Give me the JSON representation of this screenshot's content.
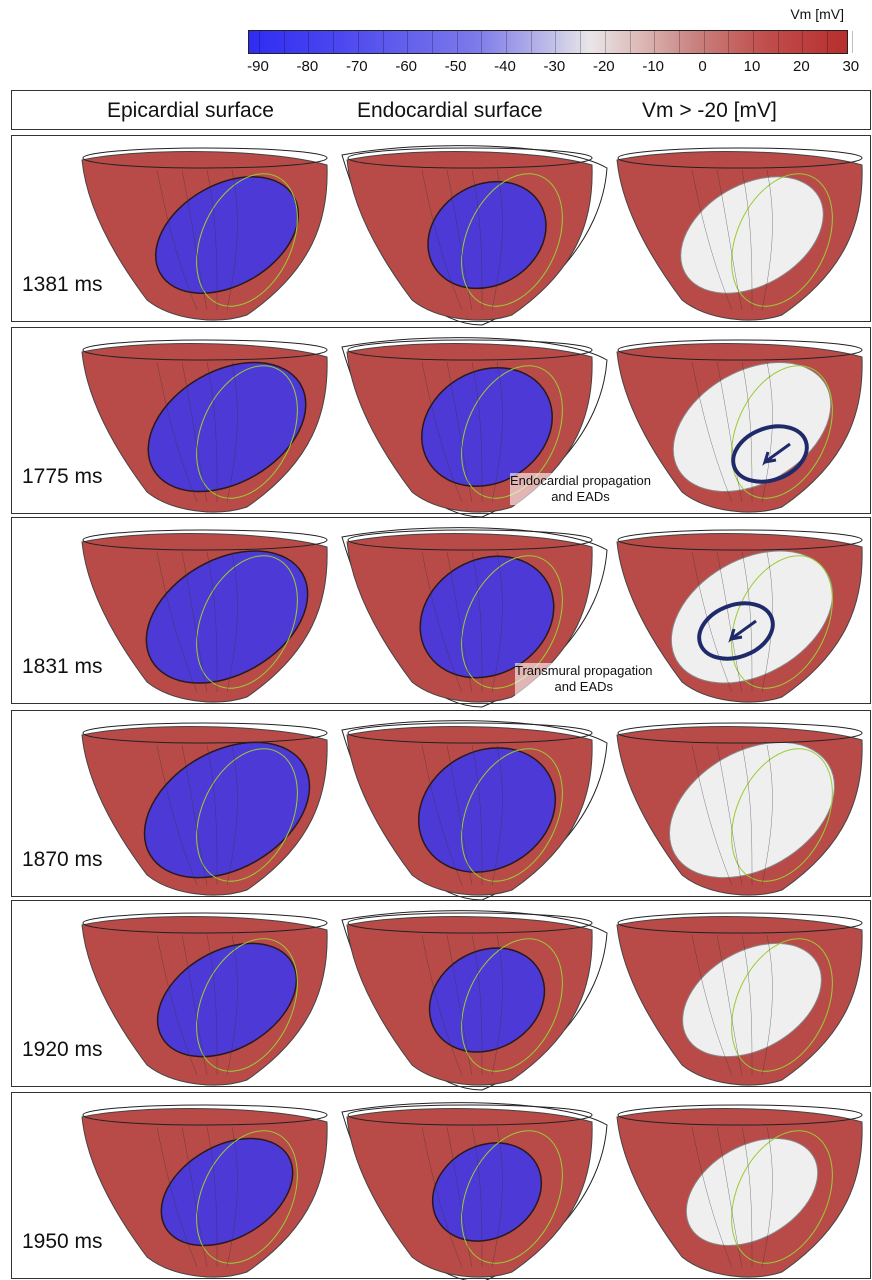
{
  "colorbar": {
    "unit_label": "Vm [mV]",
    "ticks": [
      "-90",
      "-80",
      "-70",
      "-60",
      "-50",
      "-40",
      "-30",
      "-20",
      "-10",
      "0",
      "10",
      "20",
      "30"
    ]
  },
  "columns": {
    "epi": "Epicardial surface",
    "endo": "Endocardial surface",
    "threshold": "Vm > -20 [mV]"
  },
  "rows": [
    {
      "time": "1381 ms",
      "depol_fraction": 0.45
    },
    {
      "time": "1775 ms",
      "depol_fraction": 0.25,
      "annotation": "Endocardial propagation\nand EADs"
    },
    {
      "time": "1831 ms",
      "depol_fraction": 0.2,
      "annotation": "Transmural propagation\nand EADs"
    },
    {
      "time": "1870 ms",
      "depol_fraction": 0.15
    },
    {
      "time": "1920 ms",
      "depol_fraction": 0.5
    },
    {
      "time": "1950 ms",
      "depol_fraction": 0.6
    }
  ],
  "colors": {
    "depolarized": "#b84a48",
    "repolarized": "#3b37ef",
    "threshold_fill": "#efefef",
    "arrow_ring": "#1f2a6b",
    "fiber_lines": "#9acd32"
  }
}
